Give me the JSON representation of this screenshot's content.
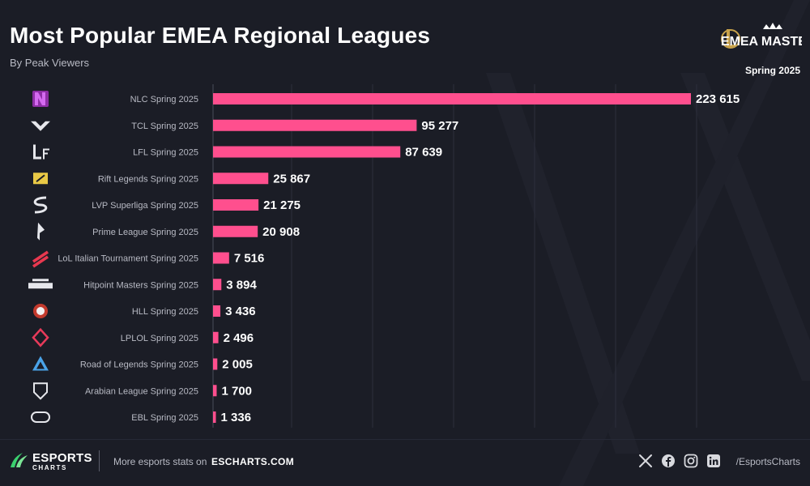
{
  "header": {
    "title": "Most Popular EMEA Regional Leagues",
    "subtitle": "By Peak Viewers",
    "season": "Spring 2025",
    "brand_logo_text": "EMEA MASTERS"
  },
  "colors": {
    "background": "#1b1d26",
    "bar": "#ff4f8e",
    "text": "#ffffff",
    "muted": "#b8bac4",
    "grid": "#2c2f3c",
    "accent_green": "#3bd16f"
  },
  "chart_data": {
    "type": "bar",
    "orientation": "horizontal",
    "title": "Most Popular EMEA Regional Leagues",
    "subtitle": "By Peak Viewers",
    "categories": [
      "NLC Spring 2025",
      "TCL Spring 2025",
      "LFL Spring 2025",
      "Rift Legends Spring 2025",
      "LVP Superliga Spring 2025",
      "Prime League Spring 2025",
      "LoL Italian Tournament Spring 2025",
      "Hitpoint Masters Spring 2025",
      "HLL Spring 2025",
      "LPLOL Spring 2025",
      "Road of Legends Spring 2025",
      "Arabian League Spring 2025",
      "EBL Spring 2025"
    ],
    "values": [
      223615,
      95277,
      87639,
      25867,
      21275,
      20908,
      7516,
      3894,
      3436,
      2496,
      2005,
      1700,
      1336
    ],
    "value_labels": [
      "223 615",
      "95 277",
      "87 639",
      "25 867",
      "21 275",
      "20 908",
      "7 516",
      "3 894",
      "3 436",
      "2 496",
      "2 005",
      "1 700",
      "1 336"
    ],
    "league_icons": [
      "nlc-logo",
      "tcl-logo",
      "lfl-logo",
      "rift-legends-logo",
      "lvp-superliga-logo",
      "prime-league-logo",
      "lit-logo",
      "hitpoint-masters-logo",
      "hll-logo",
      "lplol-logo",
      "road-of-legends-logo",
      "arabian-league-logo",
      "ebl-logo"
    ],
    "xlim": [
      0,
      260000
    ],
    "grid": true,
    "legend": "none"
  },
  "footer": {
    "brand_word1": "ESPORTS",
    "brand_word2": "CHARTS",
    "more_text": "More esports stats on",
    "site": "ESCHARTS.COM",
    "social_icons": [
      "x-icon",
      "facebook-icon",
      "instagram-icon",
      "linkedin-icon"
    ],
    "handle": "/EsportsCharts"
  }
}
